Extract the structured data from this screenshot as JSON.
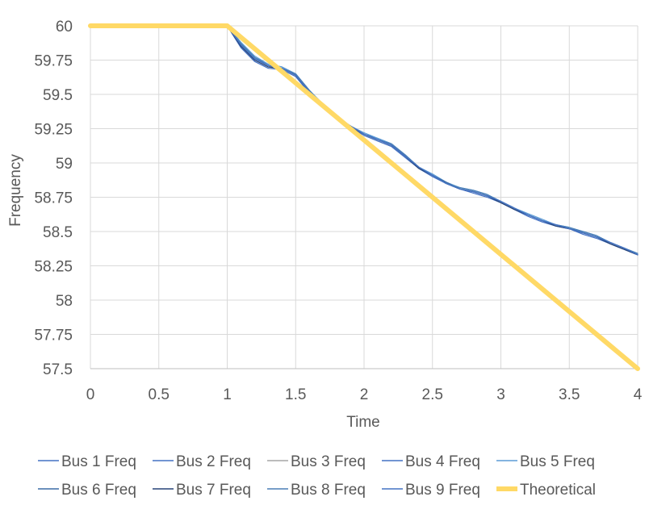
{
  "chart_data": {
    "type": "line",
    "title": "",
    "xlabel": "Time",
    "ylabel": "Frequency",
    "xlim": [
      0,
      4
    ],
    "ylim": [
      57.5,
      60
    ],
    "x_ticks": [
      "0",
      "0.5",
      "1",
      "1.5",
      "2",
      "2.5",
      "3",
      "3.5",
      "4"
    ],
    "y_ticks": [
      "57.5",
      "57.75",
      "58",
      "58.25",
      "58.5",
      "58.75",
      "59",
      "59.25",
      "59.5",
      "59.75",
      "60"
    ],
    "grid": true,
    "legend_position": "bottom",
    "series": [
      {
        "name": "Bus 1 Freq",
        "color": "#4472C4",
        "x": [
          0,
          1,
          1.1,
          1.2,
          1.3,
          1.4,
          1.5,
          1.6,
          1.7,
          1.8,
          1.9,
          2.0,
          2.1,
          2.2,
          2.3,
          2.4,
          2.5,
          2.6,
          2.7,
          2.8,
          2.9,
          3.0,
          3.1,
          3.2,
          3.3,
          3.4,
          3.5,
          3.6,
          3.7,
          3.8,
          3.9,
          4.0
        ],
        "y": [
          60,
          60,
          59.86,
          59.76,
          59.71,
          59.69,
          59.64,
          59.52,
          59.42,
          59.33,
          59.27,
          59.21,
          59.17,
          59.13,
          59.05,
          58.97,
          58.91,
          58.85,
          58.81,
          58.79,
          58.76,
          58.72,
          58.67,
          58.62,
          58.58,
          58.55,
          58.52,
          58.49,
          58.46,
          58.42,
          58.38,
          58.33
        ]
      },
      {
        "name": "Bus 2 Freq",
        "color": "#4472C4",
        "x": [
          0,
          1,
          1.1,
          1.2,
          1.3,
          1.4,
          1.5,
          1.6,
          1.7,
          1.8,
          1.9,
          2.0,
          2.1,
          2.2,
          2.3,
          2.4,
          2.5,
          2.6,
          2.7,
          2.8,
          2.9,
          3.0,
          3.1,
          3.2,
          3.3,
          3.4,
          3.5,
          3.6,
          3.7,
          3.8,
          3.9,
          4.0
        ],
        "y": [
          60,
          60,
          59.87,
          59.77,
          59.72,
          59.7,
          59.65,
          59.53,
          59.42,
          59.34,
          59.27,
          59.21,
          59.18,
          59.14,
          59.06,
          58.97,
          58.91,
          58.85,
          58.82,
          58.8,
          58.77,
          58.72,
          58.67,
          58.62,
          58.58,
          58.55,
          58.52,
          58.5,
          58.47,
          58.42,
          58.38,
          58.33
        ]
      },
      {
        "name": "Bus 3 Freq",
        "color": "#A5A5A5",
        "x": [
          0,
          1,
          1.1,
          1.2,
          1.3,
          1.4,
          1.5,
          1.6,
          1.7,
          1.8,
          1.9,
          2.0,
          2.1,
          2.2,
          2.3,
          2.4,
          2.5,
          2.6,
          2.7,
          2.8,
          2.9,
          3.0,
          3.1,
          3.2,
          3.3,
          3.4,
          3.5,
          3.6,
          3.7,
          3.8,
          3.9,
          4.0
        ],
        "y": [
          60,
          60,
          59.85,
          59.75,
          59.7,
          59.68,
          59.63,
          59.51,
          59.41,
          59.33,
          59.26,
          59.21,
          59.16,
          59.12,
          59.05,
          58.96,
          58.91,
          58.86,
          58.81,
          58.79,
          58.76,
          58.71,
          58.66,
          58.62,
          58.58,
          58.55,
          58.52,
          58.49,
          58.46,
          58.41,
          58.37,
          58.33
        ]
      },
      {
        "name": "Bus 4 Freq",
        "color": "#4472C4",
        "x": [
          0,
          1,
          1.1,
          1.2,
          1.3,
          1.4,
          1.5,
          1.6,
          1.7,
          1.8,
          1.9,
          2.0,
          2.1,
          2.2,
          2.3,
          2.4,
          2.5,
          2.6,
          2.7,
          2.8,
          2.9,
          3.0,
          3.1,
          3.2,
          3.3,
          3.4,
          3.5,
          3.6,
          3.7,
          3.8,
          3.9,
          4.0
        ],
        "y": [
          60,
          60,
          59.84,
          59.74,
          59.69,
          59.68,
          59.63,
          59.51,
          59.41,
          59.32,
          59.26,
          59.2,
          59.16,
          59.12,
          59.04,
          58.96,
          58.9,
          58.85,
          58.81,
          58.78,
          58.75,
          58.71,
          58.66,
          58.61,
          58.57,
          58.54,
          58.52,
          58.48,
          58.45,
          58.41,
          58.37,
          58.33
        ]
      },
      {
        "name": "Bus 5 Freq",
        "color": "#5B9BD5",
        "x": [
          0,
          1,
          1.1,
          1.2,
          1.3,
          1.4,
          1.5,
          1.6,
          1.7,
          1.8,
          1.9,
          2.0,
          2.1,
          2.2,
          2.3,
          2.4,
          2.5,
          2.6,
          2.7,
          2.8,
          2.9,
          3.0,
          3.1,
          3.2,
          3.3,
          3.4,
          3.5,
          3.6,
          3.7,
          3.8,
          3.9,
          4.0
        ],
        "y": [
          60,
          60,
          59.88,
          59.78,
          59.72,
          59.7,
          59.65,
          59.53,
          59.43,
          59.34,
          59.27,
          59.22,
          59.18,
          59.14,
          59.06,
          58.97,
          58.92,
          58.86,
          58.82,
          58.8,
          58.77,
          58.72,
          58.67,
          58.63,
          58.59,
          58.55,
          58.53,
          58.5,
          58.47,
          58.42,
          58.38,
          58.34
        ]
      },
      {
        "name": "Bus 6 Freq",
        "color": "#3A6BA6",
        "x": [
          0,
          1,
          1.1,
          1.2,
          1.3,
          1.4,
          1.5,
          1.6,
          1.7,
          1.8,
          1.9,
          2.0,
          2.1,
          2.2,
          2.3,
          2.4,
          2.5,
          2.6,
          2.7,
          2.8,
          2.9,
          3.0,
          3.1,
          3.2,
          3.3,
          3.4,
          3.5,
          3.6,
          3.7,
          3.8,
          3.9,
          4.0
        ],
        "y": [
          60,
          60,
          59.86,
          59.76,
          59.71,
          59.69,
          59.64,
          59.52,
          59.42,
          59.33,
          59.27,
          59.21,
          59.17,
          59.13,
          59.05,
          58.97,
          58.91,
          58.86,
          58.81,
          58.79,
          58.76,
          58.72,
          58.67,
          58.62,
          58.58,
          58.55,
          58.52,
          58.49,
          58.46,
          58.42,
          58.38,
          58.33
        ]
      },
      {
        "name": "Bus 7 Freq",
        "color": "#264478",
        "x": [
          0,
          1,
          1.1,
          1.2,
          1.3,
          1.4,
          1.5,
          1.6,
          1.7,
          1.8,
          1.9,
          2.0,
          2.1,
          2.2,
          2.3,
          2.4,
          2.5,
          2.6,
          2.7,
          2.8,
          2.9,
          3.0,
          3.1,
          3.2,
          3.3,
          3.4,
          3.5,
          3.6,
          3.7,
          3.8,
          3.9,
          4.0
        ],
        "y": [
          60,
          60,
          59.85,
          59.75,
          59.7,
          59.69,
          59.64,
          59.52,
          59.41,
          59.33,
          59.26,
          59.21,
          59.17,
          59.13,
          59.05,
          58.96,
          58.91,
          58.85,
          58.81,
          58.79,
          58.76,
          58.71,
          58.66,
          58.62,
          58.58,
          58.54,
          58.52,
          58.49,
          58.46,
          58.41,
          58.37,
          58.33
        ]
      },
      {
        "name": "Bus 8 Freq",
        "color": "#4A7FB5",
        "x": [
          0,
          1,
          1.1,
          1.2,
          1.3,
          1.4,
          1.5,
          1.6,
          1.7,
          1.8,
          1.9,
          2.0,
          2.1,
          2.2,
          2.3,
          2.4,
          2.5,
          2.6,
          2.7,
          2.8,
          2.9,
          3.0,
          3.1,
          3.2,
          3.3,
          3.4,
          3.5,
          3.6,
          3.7,
          3.8,
          3.9,
          4.0
        ],
        "y": [
          60,
          60,
          59.87,
          59.77,
          59.71,
          59.69,
          59.65,
          59.53,
          59.42,
          59.33,
          59.27,
          59.21,
          59.17,
          59.14,
          59.06,
          58.97,
          58.91,
          58.85,
          58.82,
          58.8,
          58.77,
          58.72,
          58.67,
          58.62,
          58.58,
          58.55,
          58.53,
          58.5,
          58.47,
          58.42,
          58.38,
          58.34
        ]
      },
      {
        "name": "Bus 9 Freq",
        "color": "#4472C4",
        "x": [
          0,
          1,
          1.1,
          1.2,
          1.3,
          1.4,
          1.5,
          1.6,
          1.7,
          1.8,
          1.9,
          2.0,
          2.1,
          2.2,
          2.3,
          2.4,
          2.5,
          2.6,
          2.7,
          2.8,
          2.9,
          3.0,
          3.1,
          3.2,
          3.3,
          3.4,
          3.5,
          3.6,
          3.7,
          3.8,
          3.9,
          4.0
        ],
        "y": [
          60,
          60,
          59.86,
          59.76,
          59.71,
          59.69,
          59.64,
          59.52,
          59.42,
          59.33,
          59.27,
          59.21,
          59.17,
          59.13,
          59.05,
          58.97,
          58.91,
          58.85,
          58.81,
          58.79,
          58.76,
          58.72,
          58.67,
          58.62,
          58.58,
          58.55,
          58.52,
          58.49,
          58.46,
          58.42,
          58.38,
          58.33
        ]
      },
      {
        "name": "Theoretical",
        "color": "#FFD966",
        "x": [
          0,
          1,
          4
        ],
        "y": [
          60,
          60,
          57.5
        ]
      }
    ]
  }
}
